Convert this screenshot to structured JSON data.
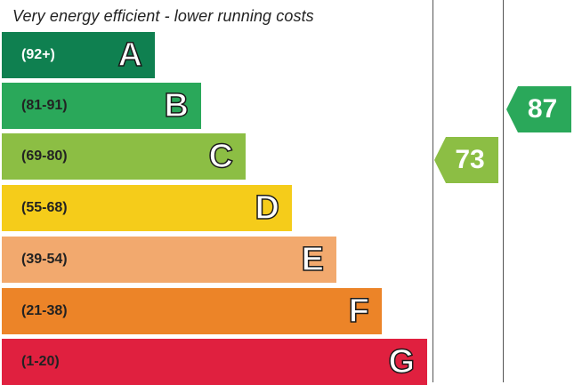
{
  "header": {
    "top_text": "Very energy efficient - lower running costs"
  },
  "chart_data": {
    "type": "bar",
    "bands": [
      {
        "letter": "A",
        "range": "(92+)",
        "color": "#0f8050"
      },
      {
        "letter": "B",
        "range": "(81-91)",
        "color": "#2aa85a"
      },
      {
        "letter": "C",
        "range": "(69-80)",
        "color": "#8cbe44"
      },
      {
        "letter": "D",
        "range": "(55-68)",
        "color": "#f5cc1a"
      },
      {
        "letter": "E",
        "range": "(39-54)",
        "color": "#f2a96e"
      },
      {
        "letter": "F",
        "range": "(21-38)",
        "color": "#ec8428"
      },
      {
        "letter": "G",
        "range": "(1-20)",
        "color": "#e0203f"
      }
    ],
    "ratings": [
      {
        "value": 73,
        "band": "C",
        "color": "#8cbe44"
      },
      {
        "value": 87,
        "band": "B",
        "color": "#2aa85a"
      }
    ]
  }
}
